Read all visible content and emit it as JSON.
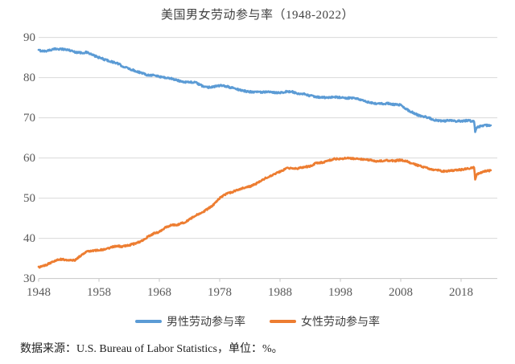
{
  "title": "美国男女劳动参与率（1948-2022）",
  "footer": "数据来源：U.S. Bureau of Labor Statistics，单位：%。",
  "colors": {
    "male_line": "#5B9BD5",
    "female_line": "#ED7D31",
    "gridline": "#D9D9D9",
    "axis_line": "#C6C6C6",
    "axis_label": "#595959",
    "title_text": "#404040"
  },
  "legend": [
    {
      "label": "男性劳动参与率",
      "color": "#5B9BD5"
    },
    {
      "label": "女性劳动参与率",
      "color": "#ED7D31"
    }
  ],
  "chart_data": {
    "type": "line",
    "title": "美国男女劳动参与率（1948-2022）",
    "xlabel": "",
    "ylabel": "",
    "unit": "%",
    "xlim": [
      1948,
      2024
    ],
    "ylim": [
      30,
      90
    ],
    "grid": "horizontal",
    "legend_position": "bottom",
    "x_ticks": [
      1948,
      1958,
      1968,
      1978,
      1988,
      1998,
      2008,
      2018
    ],
    "x_tick_labels": [
      "1948",
      "1958",
      "1968",
      "1978",
      "1988",
      "1998",
      "2008",
      "2018"
    ],
    "y_ticks": [
      90,
      80,
      70,
      60,
      50,
      40,
      30
    ],
    "y_tick_labels": [
      "90",
      "80",
      "70",
      "60",
      "50",
      "40",
      "30"
    ],
    "series": [
      {
        "name": "男性劳动参与率",
        "color": "#5B9BD5",
        "noise": 0.45,
        "x": [
          1948,
          1949,
          1950,
          1951,
          1952,
          1953,
          1954,
          1955,
          1956,
          1957,
          1958,
          1959,
          1960,
          1961,
          1962,
          1963,
          1964,
          1965,
          1966,
          1967,
          1968,
          1969,
          1970,
          1971,
          1972,
          1973,
          1974,
          1975,
          1976,
          1977,
          1978,
          1979,
          1980,
          1981,
          1982,
          1983,
          1984,
          1985,
          1986,
          1987,
          1988,
          1989,
          1990,
          1991,
          1992,
          1993,
          1994,
          1995,
          1996,
          1997,
          1998,
          1999,
          2000,
          2001,
          2002,
          2003,
          2004,
          2005,
          2006,
          2007,
          2008,
          2009,
          2010,
          2011,
          2012,
          2013,
          2014,
          2015,
          2016,
          2017,
          2018,
          2019,
          2020.17,
          2020.33,
          2020.58,
          2021,
          2022,
          2022.92
        ],
        "y": [
          86.8,
          86.6,
          86.9,
          87.2,
          87.1,
          86.9,
          86.4,
          86.2,
          86.3,
          85.6,
          85.0,
          84.5,
          84.0,
          83.6,
          82.8,
          82.2,
          81.7,
          81.2,
          80.7,
          80.6,
          80.3,
          80.0,
          79.8,
          79.3,
          79.0,
          78.9,
          78.8,
          78.0,
          77.6,
          77.8,
          78.0,
          77.9,
          77.5,
          77.1,
          76.7,
          76.5,
          76.5,
          76.4,
          76.4,
          76.3,
          76.3,
          76.5,
          76.5,
          75.9,
          75.9,
          75.5,
          75.2,
          75.1,
          75.0,
          75.2,
          75.1,
          74.9,
          75.0,
          74.6,
          74.2,
          73.7,
          73.5,
          73.5,
          73.6,
          73.3,
          73.2,
          72.1,
          71.3,
          70.6,
          70.3,
          69.8,
          69.3,
          69.2,
          69.3,
          69.2,
          69.2,
          69.3,
          69.2,
          66.4,
          67.6,
          67.8,
          68.1,
          68.2
        ]
      },
      {
        "name": "女性劳动参与率",
        "color": "#ED7D31",
        "noise": 0.4,
        "x": [
          1948,
          1949,
          1950,
          1951,
          1952,
          1953,
          1954,
          1955,
          1956,
          1957,
          1958,
          1959,
          1960,
          1961,
          1962,
          1963,
          1964,
          1965,
          1966,
          1967,
          1968,
          1969,
          1970,
          1971,
          1972,
          1973,
          1974,
          1975,
          1976,
          1977,
          1978,
          1979,
          1980,
          1981,
          1982,
          1983,
          1984,
          1985,
          1986,
          1987,
          1988,
          1989,
          1990,
          1991,
          1992,
          1993,
          1994,
          1995,
          1996,
          1997,
          1998,
          1999,
          2000,
          2001,
          2002,
          2003,
          2004,
          2005,
          2006,
          2007,
          2008,
          2009,
          2010,
          2011,
          2012,
          2013,
          2014,
          2015,
          2016,
          2017,
          2018,
          2019,
          2020.17,
          2020.33,
          2020.58,
          2021,
          2022,
          2022.92
        ],
        "y": [
          32.8,
          33.2,
          33.9,
          34.7,
          34.8,
          34.5,
          34.6,
          35.7,
          36.9,
          36.9,
          37.1,
          37.2,
          37.8,
          38.1,
          38.0,
          38.3,
          38.7,
          39.3,
          40.3,
          41.2,
          41.6,
          42.7,
          43.3,
          43.4,
          43.9,
          44.7,
          45.7,
          46.3,
          47.3,
          48.4,
          50.0,
          51.0,
          51.5,
          52.1,
          52.6,
          52.9,
          53.6,
          54.5,
          55.3,
          56.0,
          56.6,
          57.4,
          57.5,
          57.4,
          57.8,
          57.9,
          58.8,
          58.9,
          59.3,
          59.8,
          59.8,
          60.0,
          59.9,
          59.8,
          59.6,
          59.5,
          59.2,
          59.3,
          59.4,
          59.3,
          59.5,
          59.2,
          58.6,
          58.1,
          57.7,
          57.2,
          57.0,
          56.7,
          56.8,
          57.0,
          57.1,
          57.4,
          57.6,
          54.6,
          55.9,
          56.2,
          56.7,
          56.9
        ]
      }
    ]
  }
}
